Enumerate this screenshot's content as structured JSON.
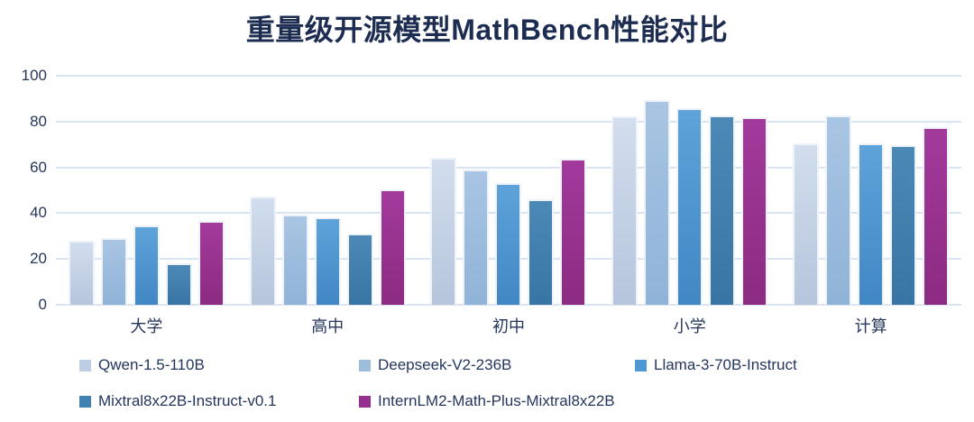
{
  "chart_data": {
    "type": "bar",
    "title": "重量级开源模型MathBench性能对比",
    "categories": [
      "大学",
      "高中",
      "初中",
      "小学",
      "计算"
    ],
    "series": [
      {
        "name": "Qwen-1.5-110B",
        "values": [
          28.0,
          47.3,
          64.0,
          82.3,
          70.3
        ],
        "color": "#bccde4",
        "gradient_top": "#d2deee",
        "gradient_bottom": "#b6c5dc"
      },
      {
        "name": "Deepseek-V2-236B",
        "values": [
          29.3,
          39.3,
          59.0,
          89.3,
          82.7
        ],
        "color": "#9dbddd",
        "gradient_top": "#a9c5e3",
        "gradient_bottom": "#8fb3d7"
      },
      {
        "name": "Llama-3-70B-Instruct",
        "values": [
          34.7,
          38.3,
          53.0,
          86.0,
          70.3
        ],
        "color": "#4e99d4",
        "gradient_top": "#5ea3d9",
        "gradient_bottom": "#4187c4"
      },
      {
        "name": "Mixtral8x22B-Instruct-v0.1",
        "values": [
          18.0,
          31.3,
          46.0,
          82.7,
          69.5
        ],
        "color": "#3f82b2",
        "gradient_top": "#4d89b7",
        "gradient_bottom": "#3875a4"
      },
      {
        "name": "InternLM2-Math-Plus-Mixtral8x22B",
        "values": [
          36.8,
          50.3,
          63.7,
          82.0,
          77.5
        ],
        "color": "#953090",
        "gradient_top": "#a23a9c",
        "gradient_bottom": "#8c2b81"
      }
    ],
    "xlabel": "",
    "ylabel": "",
    "ylim": [
      0,
      100
    ],
    "yticks": [
      100,
      80,
      60,
      40,
      20,
      0
    ],
    "grid": true,
    "legend_position": "bottom",
    "legend_rows": [
      [
        0,
        1,
        2
      ],
      [
        3,
        4
      ]
    ]
  },
  "colors": {
    "title_text": "#1d2d52",
    "axis_text": "#24365c",
    "gridline": "#d9e4f3",
    "background": "#ffffff"
  }
}
